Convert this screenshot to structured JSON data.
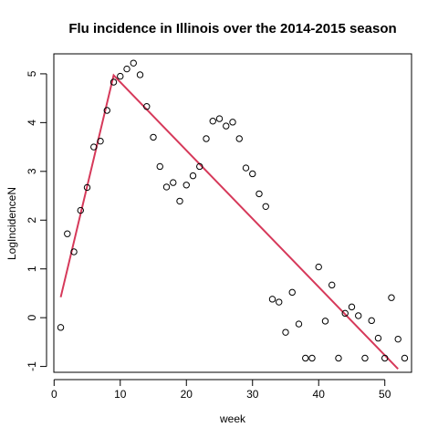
{
  "chart_data": {
    "type": "scatter",
    "title": "Flu incidence in Illinois over the 2014-2015 season",
    "xlabel": "week",
    "ylabel": "LogIncidenceN",
    "xlim": [
      -0.04,
      54.04
    ],
    "ylim": [
      -1.12,
      5.41
    ],
    "xticks": [
      0,
      10,
      20,
      30,
      40,
      50
    ],
    "yticks": [
      -1,
      0,
      1,
      2,
      3,
      4,
      5
    ],
    "grid": false,
    "legend": "none",
    "colors": {
      "points": "#000000",
      "fit_line": "#d6395a"
    },
    "points": {
      "x": [
        1,
        2,
        3,
        4,
        5,
        6,
        7,
        8,
        9,
        10,
        11,
        12,
        13,
        14,
        15,
        16,
        17,
        18,
        19,
        20,
        21,
        22,
        23,
        24,
        25,
        26,
        27,
        28,
        29,
        30,
        31,
        32,
        33,
        34,
        35,
        36,
        37,
        38,
        39,
        40,
        41,
        42,
        43,
        44,
        45,
        46,
        47,
        48,
        49,
        50,
        51,
        52,
        53
      ],
      "y": [
        -0.2,
        1.72,
        1.35,
        2.2,
        2.67,
        3.5,
        3.62,
        4.25,
        4.83,
        4.95,
        5.1,
        5.22,
        4.98,
        4.33,
        3.7,
        3.1,
        2.68,
        2.77,
        2.39,
        2.72,
        2.91,
        3.1,
        3.67,
        4.03,
        4.08,
        3.93,
        4.01,
        3.67,
        3.07,
        2.95,
        2.54,
        2.28,
        0.38,
        0.32,
        -0.3,
        0.52,
        -0.13,
        -0.83,
        -0.83,
        1.04,
        -0.07,
        0.67,
        -0.83,
        0.09,
        0.22,
        0.04,
        -0.83,
        -0.06,
        -0.42,
        -0.83,
        0.41,
        -0.44,
        -0.83
      ]
    },
    "fit_line": {
      "x": [
        1,
        9,
        52
      ],
      "y": [
        0.42,
        4.97,
        -1.05
      ]
    }
  }
}
